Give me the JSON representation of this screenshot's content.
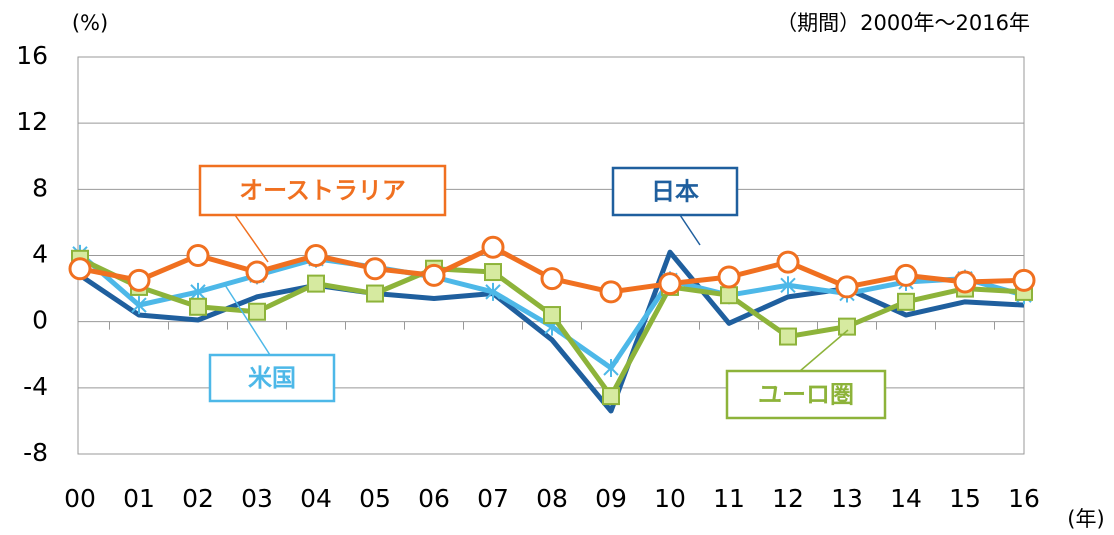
{
  "chart_data": {
    "type": "line",
    "y_label": "(%)",
    "subtitle": "（期間）2000年～2016年",
    "x_label": "(年)",
    "categories": [
      "00",
      "01",
      "02",
      "03",
      "04",
      "05",
      "06",
      "07",
      "08",
      "09",
      "10",
      "11",
      "12",
      "13",
      "14",
      "15",
      "16"
    ],
    "ylim": [
      -8,
      16
    ],
    "yticks": [
      -8,
      -4,
      0,
      4,
      8,
      12,
      16
    ],
    "grid": true,
    "series": [
      {
        "name": "日本",
        "color": "#1f5f9e",
        "marker": "none",
        "values": [
          2.8,
          0.4,
          0.1,
          1.5,
          2.2,
          1.7,
          1.4,
          1.7,
          -1.1,
          -5.4,
          4.2,
          -0.1,
          1.5,
          2.0,
          0.4,
          1.2,
          1.0
        ]
      },
      {
        "name": "米国",
        "color": "#4db8e8",
        "marker": "x",
        "values": [
          4.1,
          1.0,
          1.8,
          2.8,
          3.8,
          3.3,
          2.7,
          1.8,
          -0.3,
          -2.8,
          2.5,
          1.6,
          2.2,
          1.7,
          2.4,
          2.6,
          1.6
        ]
      },
      {
        "name": "ユーロ圏",
        "color": "#8db33a",
        "marker": "square",
        "values": [
          3.8,
          2.1,
          0.9,
          0.6,
          2.3,
          1.7,
          3.2,
          3.0,
          0.4,
          -4.5,
          2.1,
          1.6,
          -0.9,
          -0.3,
          1.2,
          2.0,
          1.8
        ]
      },
      {
        "name": "オーストラリア",
        "color": "#f07020",
        "marker": "circle",
        "values": [
          3.2,
          2.5,
          4.0,
          3.0,
          4.0,
          3.2,
          2.8,
          4.5,
          2.6,
          1.8,
          2.3,
          2.7,
          3.6,
          2.1,
          2.8,
          2.4,
          2.5
        ]
      }
    ]
  }
}
